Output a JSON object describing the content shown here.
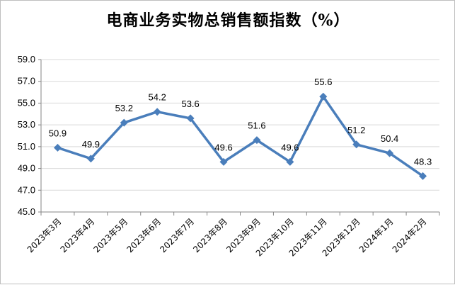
{
  "chart_data": {
    "type": "line",
    "title": "电商业务实物总销售额指数（%）",
    "xlabel": "",
    "ylabel": "",
    "categories": [
      "2023年3月",
      "2023年4月",
      "2023年5月",
      "2023年6月",
      "2023年7月",
      "2023年8月",
      "2023年9月",
      "2023年10月",
      "2023年11月",
      "2023年12月",
      "2024年1月",
      "2024年2月"
    ],
    "series": [
      {
        "values": [
          50.9,
          49.9,
          53.2,
          54.2,
          53.6,
          49.6,
          51.6,
          49.6,
          55.6,
          51.2,
          50.4,
          48.3
        ]
      }
    ],
    "data_labels": [
      "50.9",
      "49.9",
      "53.2",
      "54.2",
      "53.6",
      "49.6",
      "51.6",
      "49.6",
      "55.6",
      "51.2",
      "50.4",
      "48.3"
    ],
    "y_ticks": [
      "45.0",
      "47.0",
      "49.0",
      "51.0",
      "53.0",
      "55.0",
      "57.0",
      "59.0"
    ],
    "ylim": [
      45,
      59
    ],
    "grid": true,
    "legend": "none",
    "colors": {
      "line": "#4a7ebb",
      "marker": "#4a7ebb",
      "grid": "#d9d9d9",
      "axis": "#868686"
    }
  }
}
